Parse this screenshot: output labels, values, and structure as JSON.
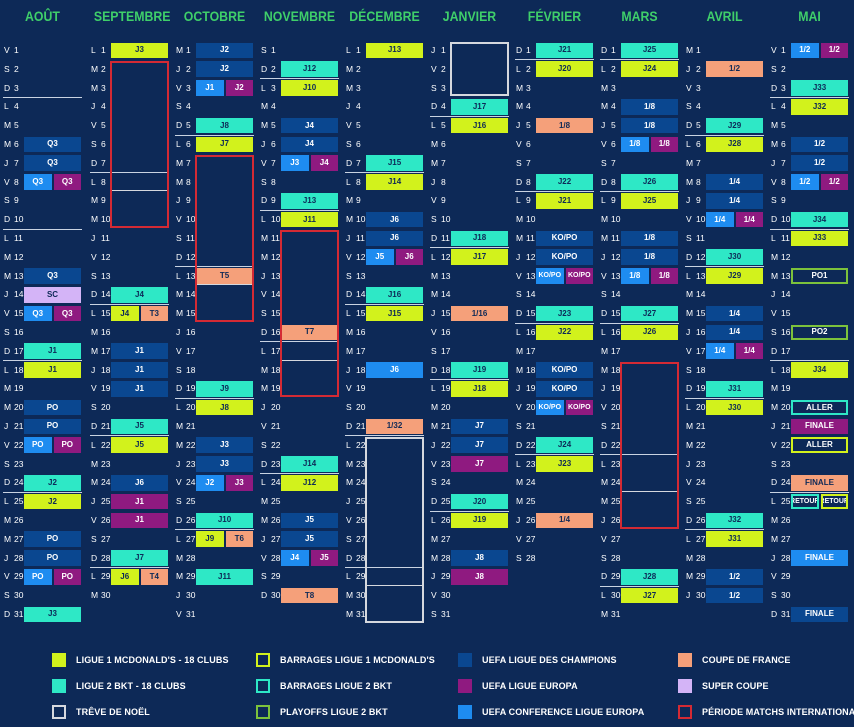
{
  "months": [
    {
      "name": "AOÛT",
      "days": 31,
      "start": 4
    },
    {
      "name": "SEPTEMBRE",
      "days": 30,
      "start": 0
    },
    {
      "name": "OCTOBRE",
      "days": 31,
      "start": 2
    },
    {
      "name": "NOVEMBRE",
      "days": 30,
      "start": 5
    },
    {
      "name": "DÉCEMBRE",
      "days": 31,
      "start": 0
    },
    {
      "name": "JANVIER",
      "days": 31,
      "start": 3
    },
    {
      "name": "FÉVRIER",
      "days": 28,
      "start": 6
    },
    {
      "name": "MARS",
      "days": 31,
      "start": 6
    },
    {
      "name": "AVRIL",
      "days": 30,
      "start": 2
    },
    {
      "name": "MAI",
      "days": 31,
      "start": 4
    }
  ],
  "weekday_letters": [
    "L",
    "M",
    "M",
    "J",
    "V",
    "S",
    "D"
  ],
  "colors": {
    "l1": "#d2f21c",
    "l2": "#2ee8c6",
    "ucl": "#0a4790",
    "uel": "#8f1a80",
    "uecl": "#1e8cf0",
    "cdf": "#f5a07a",
    "sc": "#d4b4f7",
    "b_l1": "#d2f21c",
    "b_l2": "#2ee8c6",
    "po_l2": "#7cc23c",
    "noel": "#d5d8de",
    "intl": "#d42a34"
  },
  "events": [
    {
      "m": 0,
      "d": 6,
      "t": "ucl",
      "l": "Q3"
    },
    {
      "m": 0,
      "d": 7,
      "t": "ucl",
      "l": "Q3"
    },
    {
      "m": 0,
      "d": 8,
      "t": "uecl",
      "l": "Q3",
      "half": 1
    },
    {
      "m": 0,
      "d": 8,
      "t": "uel",
      "l": "Q3",
      "half": 2
    },
    {
      "m": 0,
      "d": 13,
      "t": "ucl",
      "l": "Q3"
    },
    {
      "m": 0,
      "d": 14,
      "t": "sc",
      "l": "SC"
    },
    {
      "m": 0,
      "d": 15,
      "t": "uecl",
      "l": "Q3",
      "half": 1
    },
    {
      "m": 0,
      "d": 15,
      "t": "uel",
      "l": "Q3",
      "half": 2
    },
    {
      "m": 0,
      "d": 17,
      "t": "l2",
      "l": "J1"
    },
    {
      "m": 0,
      "d": 18,
      "t": "l1",
      "l": "J1"
    },
    {
      "m": 0,
      "d": 20,
      "t": "ucl",
      "l": "PO"
    },
    {
      "m": 0,
      "d": 21,
      "t": "ucl",
      "l": "PO"
    },
    {
      "m": 0,
      "d": 22,
      "t": "uecl",
      "l": "PO",
      "half": 1
    },
    {
      "m": 0,
      "d": 22,
      "t": "uel",
      "l": "PO",
      "half": 2
    },
    {
      "m": 0,
      "d": 24,
      "t": "l2",
      "l": "J2"
    },
    {
      "m": 0,
      "d": 25,
      "t": "l1",
      "l": "J2"
    },
    {
      "m": 0,
      "d": 27,
      "t": "ucl",
      "l": "PO"
    },
    {
      "m": 0,
      "d": 28,
      "t": "ucl",
      "l": "PO"
    },
    {
      "m": 0,
      "d": 29,
      "t": "uecl",
      "l": "PO",
      "half": 1
    },
    {
      "m": 0,
      "d": 29,
      "t": "uel",
      "l": "PO",
      "half": 2
    },
    {
      "m": 0,
      "d": 31,
      "t": "l2",
      "l": "J3"
    },
    {
      "m": 1,
      "d": 1,
      "t": "l1",
      "l": "J3"
    },
    {
      "m": 1,
      "d": 14,
      "t": "l2",
      "l": "J4"
    },
    {
      "m": 1,
      "d": 15,
      "t": "l1",
      "l": "J4",
      "half": 1
    },
    {
      "m": 1,
      "d": 15,
      "t": "cdf",
      "l": "T3",
      "half": 2
    },
    {
      "m": 1,
      "d": 17,
      "t": "ucl",
      "l": "J1"
    },
    {
      "m": 1,
      "d": 18,
      "t": "ucl",
      "l": "J1"
    },
    {
      "m": 1,
      "d": 19,
      "t": "ucl",
      "l": "J1"
    },
    {
      "m": 1,
      "d": 21,
      "t": "l2",
      "l": "J5"
    },
    {
      "m": 1,
      "d": 22,
      "t": "l1",
      "l": "J5"
    },
    {
      "m": 1,
      "d": 24,
      "t": "ucl",
      "l": "J6"
    },
    {
      "m": 1,
      "d": 25,
      "t": "uel",
      "l": "J1"
    },
    {
      "m": 1,
      "d": 26,
      "t": "uel",
      "l": "J1"
    },
    {
      "m": 1,
      "d": 28,
      "t": "l2",
      "l": "J7"
    },
    {
      "m": 1,
      "d": 29,
      "t": "l1",
      "l": "J6",
      "half": 1
    },
    {
      "m": 1,
      "d": 29,
      "t": "cdf",
      "l": "T4",
      "half": 2
    },
    {
      "m": 2,
      "d": 1,
      "t": "ucl",
      "l": "J2"
    },
    {
      "m": 2,
      "d": 2,
      "t": "ucl",
      "l": "J2"
    },
    {
      "m": 2,
      "d": 3,
      "t": "uecl",
      "l": "J1",
      "half": 1
    },
    {
      "m": 2,
      "d": 3,
      "t": "uel",
      "l": "J2",
      "half": 2
    },
    {
      "m": 2,
      "d": 5,
      "t": "l2",
      "l": "J8"
    },
    {
      "m": 2,
      "d": 6,
      "t": "l1",
      "l": "J7"
    },
    {
      "m": 2,
      "d": 13,
      "t": "cdf",
      "l": "T5"
    },
    {
      "m": 2,
      "d": 19,
      "t": "l2",
      "l": "J9"
    },
    {
      "m": 2,
      "d": 20,
      "t": "l1",
      "l": "J8"
    },
    {
      "m": 2,
      "d": 22,
      "t": "ucl",
      "l": "J3"
    },
    {
      "m": 2,
      "d": 23,
      "t": "ucl",
      "l": "J3"
    },
    {
      "m": 2,
      "d": 24,
      "t": "uecl",
      "l": "J2",
      "half": 1
    },
    {
      "m": 2,
      "d": 24,
      "t": "uel",
      "l": "J3",
      "half": 2
    },
    {
      "m": 2,
      "d": 26,
      "t": "l2",
      "l": "J10"
    },
    {
      "m": 2,
      "d": 27,
      "t": "l1",
      "l": "J9",
      "half": 1
    },
    {
      "m": 2,
      "d": 27,
      "t": "cdf",
      "l": "T6",
      "half": 2
    },
    {
      "m": 2,
      "d": 29,
      "t": "l2",
      "l": "J11"
    },
    {
      "m": 3,
      "d": 2,
      "t": "l2",
      "l": "J12"
    },
    {
      "m": 3,
      "d": 3,
      "t": "l1",
      "l": "J10"
    },
    {
      "m": 3,
      "d": 5,
      "t": "ucl",
      "l": "J4"
    },
    {
      "m": 3,
      "d": 6,
      "t": "ucl",
      "l": "J4"
    },
    {
      "m": 3,
      "d": 7,
      "t": "uecl",
      "l": "J3",
      "half": 1
    },
    {
      "m": 3,
      "d": 7,
      "t": "uel",
      "l": "J4",
      "half": 2
    },
    {
      "m": 3,
      "d": 9,
      "t": "l2",
      "l": "J13"
    },
    {
      "m": 3,
      "d": 10,
      "t": "l1",
      "l": "J11"
    },
    {
      "m": 3,
      "d": 16,
      "t": "cdf",
      "l": "T7"
    },
    {
      "m": 3,
      "d": 23,
      "t": "l2",
      "l": "J14"
    },
    {
      "m": 3,
      "d": 24,
      "t": "l1",
      "l": "J12"
    },
    {
      "m": 3,
      "d": 26,
      "t": "ucl",
      "l": "J5"
    },
    {
      "m": 3,
      "d": 27,
      "t": "ucl",
      "l": "J5"
    },
    {
      "m": 3,
      "d": 28,
      "t": "uecl",
      "l": "J4",
      "half": 1
    },
    {
      "m": 3,
      "d": 28,
      "t": "uel",
      "l": "J5",
      "half": 2
    },
    {
      "m": 3,
      "d": 30,
      "t": "cdf",
      "l": "T8"
    },
    {
      "m": 4,
      "d": 1,
      "t": "l1",
      "l": "J13"
    },
    {
      "m": 4,
      "d": 7,
      "t": "l2",
      "l": "J15"
    },
    {
      "m": 4,
      "d": 8,
      "t": "l1",
      "l": "J14"
    },
    {
      "m": 4,
      "d": 10,
      "t": "ucl",
      "l": "J6"
    },
    {
      "m": 4,
      "d": 11,
      "t": "ucl",
      "l": "J6"
    },
    {
      "m": 4,
      "d": 12,
      "t": "uecl",
      "l": "J5",
      "half": 1
    },
    {
      "m": 4,
      "d": 12,
      "t": "uel",
      "l": "J6",
      "half": 2
    },
    {
      "m": 4,
      "d": 14,
      "t": "l2",
      "l": "J16"
    },
    {
      "m": 4,
      "d": 15,
      "t": "l1",
      "l": "J15"
    },
    {
      "m": 4,
      "d": 18,
      "t": "uecl",
      "l": "J6"
    },
    {
      "m": 4,
      "d": 21,
      "t": "cdf",
      "l": "1/32"
    },
    {
      "m": 5,
      "d": 4,
      "t": "l2",
      "l": "J17"
    },
    {
      "m": 5,
      "d": 5,
      "t": "l1",
      "l": "J16"
    },
    {
      "m": 5,
      "d": 11,
      "t": "l2",
      "l": "J18"
    },
    {
      "m": 5,
      "d": 12,
      "t": "l1",
      "l": "J17"
    },
    {
      "m": 5,
      "d": 15,
      "t": "cdf",
      "l": "1/16"
    },
    {
      "m": 5,
      "d": 18,
      "t": "l2",
      "l": "J19"
    },
    {
      "m": 5,
      "d": 19,
      "t": "l1",
      "l": "J18"
    },
    {
      "m": 5,
      "d": 21,
      "t": "ucl",
      "l": "J7"
    },
    {
      "m": 5,
      "d": 22,
      "t": "ucl",
      "l": "J7"
    },
    {
      "m": 5,
      "d": 23,
      "t": "uel",
      "l": "J7"
    },
    {
      "m": 5,
      "d": 25,
      "t": "l2",
      "l": "J20"
    },
    {
      "m": 5,
      "d": 26,
      "t": "l1",
      "l": "J19"
    },
    {
      "m": 5,
      "d": 28,
      "t": "ucl",
      "l": "J8"
    },
    {
      "m": 5,
      "d": 29,
      "t": "uel",
      "l": "J8"
    },
    {
      "m": 6,
      "d": 1,
      "t": "l2",
      "l": "J21"
    },
    {
      "m": 6,
      "d": 2,
      "t": "l1",
      "l": "J20"
    },
    {
      "m": 6,
      "d": 5,
      "t": "cdf",
      "l": "1/8"
    },
    {
      "m": 6,
      "d": 8,
      "t": "l2",
      "l": "J22"
    },
    {
      "m": 6,
      "d": 9,
      "t": "l1",
      "l": "J21"
    },
    {
      "m": 6,
      "d": 11,
      "t": "ucl",
      "l": "KO/PO"
    },
    {
      "m": 6,
      "d": 12,
      "t": "ucl",
      "l": "KO/PO"
    },
    {
      "m": 6,
      "d": 13,
      "t": "uecl",
      "l": "KO/PO",
      "half": 1
    },
    {
      "m": 6,
      "d": 13,
      "t": "uel",
      "l": "KO/PO",
      "half": 2
    },
    {
      "m": 6,
      "d": 15,
      "t": "l2",
      "l": "J23"
    },
    {
      "m": 6,
      "d": 16,
      "t": "l1",
      "l": "J22"
    },
    {
      "m": 6,
      "d": 18,
      "t": "ucl",
      "l": "KO/PO"
    },
    {
      "m": 6,
      "d": 19,
      "t": "ucl",
      "l": "KO/PO"
    },
    {
      "m": 6,
      "d": 20,
      "t": "uecl",
      "l": "KO/PO",
      "half": 1
    },
    {
      "m": 6,
      "d": 20,
      "t": "uel",
      "l": "KO/PO",
      "half": 2
    },
    {
      "m": 6,
      "d": 22,
      "t": "l2",
      "l": "J24"
    },
    {
      "m": 6,
      "d": 23,
      "t": "l1",
      "l": "J23"
    },
    {
      "m": 6,
      "d": 26,
      "t": "cdf",
      "l": "1/4"
    },
    {
      "m": 7,
      "d": 1,
      "t": "l2",
      "l": "J25"
    },
    {
      "m": 7,
      "d": 2,
      "t": "l1",
      "l": "J24"
    },
    {
      "m": 7,
      "d": 4,
      "t": "ucl",
      "l": "1/8"
    },
    {
      "m": 7,
      "d": 5,
      "t": "ucl",
      "l": "1/8"
    },
    {
      "m": 7,
      "d": 6,
      "t": "uecl",
      "l": "1/8",
      "half": 1
    },
    {
      "m": 7,
      "d": 6,
      "t": "uel",
      "l": "1/8",
      "half": 2
    },
    {
      "m": 7,
      "d": 8,
      "t": "l2",
      "l": "J26"
    },
    {
      "m": 7,
      "d": 9,
      "t": "l1",
      "l": "J25"
    },
    {
      "m": 7,
      "d": 11,
      "t": "ucl",
      "l": "1/8"
    },
    {
      "m": 7,
      "d": 12,
      "t": "ucl",
      "l": "1/8"
    },
    {
      "m": 7,
      "d": 13,
      "t": "uecl",
      "l": "1/8",
      "half": 1
    },
    {
      "m": 7,
      "d": 13,
      "t": "uel",
      "l": "1/8",
      "half": 2
    },
    {
      "m": 7,
      "d": 15,
      "t": "l2",
      "l": "J27"
    },
    {
      "m": 7,
      "d": 16,
      "t": "l1",
      "l": "J26"
    },
    {
      "m": 7,
      "d": 29,
      "t": "l2",
      "l": "J28"
    },
    {
      "m": 7,
      "d": 30,
      "t": "l1",
      "l": "J27"
    },
    {
      "m": 8,
      "d": 2,
      "t": "cdf",
      "l": "1/2"
    },
    {
      "m": 8,
      "d": 5,
      "t": "l2",
      "l": "J29"
    },
    {
      "m": 8,
      "d": 6,
      "t": "l1",
      "l": "J28"
    },
    {
      "m": 8,
      "d": 8,
      "t": "ucl",
      "l": "1/4"
    },
    {
      "m": 8,
      "d": 9,
      "t": "ucl",
      "l": "1/4"
    },
    {
      "m": 8,
      "d": 10,
      "t": "uecl",
      "l": "1/4",
      "half": 1
    },
    {
      "m": 8,
      "d": 10,
      "t": "uel",
      "l": "1/4",
      "half": 2
    },
    {
      "m": 8,
      "d": 12,
      "t": "l2",
      "l": "J30"
    },
    {
      "m": 8,
      "d": 13,
      "t": "l1",
      "l": "J29"
    },
    {
      "m": 8,
      "d": 15,
      "t": "ucl",
      "l": "1/4"
    },
    {
      "m": 8,
      "d": 16,
      "t": "ucl",
      "l": "1/4"
    },
    {
      "m": 8,
      "d": 17,
      "t": "uecl",
      "l": "1/4",
      "half": 1
    },
    {
      "m": 8,
      "d": 17,
      "t": "uel",
      "l": "1/4",
      "half": 2
    },
    {
      "m": 8,
      "d": 19,
      "t": "l2",
      "l": "J31"
    },
    {
      "m": 8,
      "d": 20,
      "t": "l1",
      "l": "J30"
    },
    {
      "m": 8,
      "d": 26,
      "t": "l2",
      "l": "J32"
    },
    {
      "m": 8,
      "d": 27,
      "t": "l1",
      "l": "J31"
    },
    {
      "m": 8,
      "d": 29,
      "t": "ucl",
      "l": "1/2"
    },
    {
      "m": 8,
      "d": 30,
      "t": "ucl",
      "l": "1/2"
    },
    {
      "m": 9,
      "d": 1,
      "t": "uecl",
      "l": "1/2",
      "half": 1
    },
    {
      "m": 9,
      "d": 1,
      "t": "uel",
      "l": "1/2",
      "half": 2
    },
    {
      "m": 9,
      "d": 3,
      "t": "l2",
      "l": "J33"
    },
    {
      "m": 9,
      "d": 4,
      "t": "l1",
      "l": "J32"
    },
    {
      "m": 9,
      "d": 6,
      "t": "ucl",
      "l": "1/2"
    },
    {
      "m": 9,
      "d": 7,
      "t": "ucl",
      "l": "1/2"
    },
    {
      "m": 9,
      "d": 8,
      "t": "uecl",
      "l": "1/2",
      "half": 1
    },
    {
      "m": 9,
      "d": 8,
      "t": "uel",
      "l": "1/2",
      "half": 2
    },
    {
      "m": 9,
      "d": 10,
      "t": "l2",
      "l": "J34"
    },
    {
      "m": 9,
      "d": 11,
      "t": "l1",
      "l": "J33"
    },
    {
      "m": 9,
      "d": 13,
      "t": "po_l2",
      "l": "PO1",
      "outline": true
    },
    {
      "m": 9,
      "d": 16,
      "t": "po_l2",
      "l": "PO2",
      "outline": true
    },
    {
      "m": 9,
      "d": 18,
      "t": "l1",
      "l": "J34"
    },
    {
      "m": 9,
      "d": 20,
      "t": "b_l2",
      "l": "ALLER",
      "outline": true
    },
    {
      "m": 9,
      "d": 21,
      "t": "uel",
      "l": "FINALE"
    },
    {
      "m": 9,
      "d": 22,
      "t": "b_l1",
      "l": "ALLER",
      "outline": true
    },
    {
      "m": 9,
      "d": 24,
      "t": "cdf",
      "l": "FINALE"
    },
    {
      "m": 9,
      "d": 25,
      "t": "b_l2",
      "l": "RETOUR",
      "outline": true,
      "half": 1
    },
    {
      "m": 9,
      "d": 25,
      "t": "b_l1",
      "l": "RETOUR",
      "outline": true,
      "half": 2
    },
    {
      "m": 9,
      "d": 28,
      "t": "uecl",
      "l": "FINALE"
    },
    {
      "m": 9,
      "d": 31,
      "t": "ucl",
      "l": "FINALE"
    }
  ],
  "intl_periods": [
    {
      "m": 1,
      "from": 2,
      "to": 10,
      "divider_after": 8
    },
    {
      "m": 2,
      "from": 7,
      "to": 15,
      "divider_after": 13
    },
    {
      "m": 3,
      "from": 11,
      "to": 19,
      "divider_after": 17
    },
    {
      "m": 7,
      "from": 18,
      "to": 26,
      "divider_after": 24
    }
  ],
  "noel_periods": [
    {
      "m": 4,
      "from": 22,
      "to": 31,
      "divider_after": 29
    },
    {
      "m": 5,
      "from": 1,
      "to": 3
    }
  ],
  "legend": [
    {
      "label": "LIGUE 1 MCDONALD'S - 18 CLUBS",
      "t": "l1",
      "outline": false
    },
    {
      "label": "BARRAGES LIGUE 1 MCDONALD'S",
      "t": "b_l1",
      "outline": true
    },
    {
      "label": "UEFA LIGUE DES CHAMPIONS",
      "t": "ucl",
      "outline": false
    },
    {
      "label": "COUPE DE FRANCE",
      "t": "cdf",
      "outline": false
    },
    {
      "label": "LIGUE 2 BKT - 18 CLUBS",
      "t": "l2",
      "outline": false
    },
    {
      "label": "BARRAGES LIGUE 2 BKT",
      "t": "b_l2",
      "outline": true
    },
    {
      "label": "UEFA LIGUE EUROPA",
      "t": "uel",
      "outline": false
    },
    {
      "label": "SUPER COUPE",
      "t": "sc",
      "outline": false
    },
    {
      "label": "TRÊVE DE NOËL",
      "t": "noel",
      "outline": true
    },
    {
      "label": "PLAYOFFS LIGUE 2 BKT",
      "t": "po_l2",
      "outline": true
    },
    {
      "label": "UEFA CONFERENCE LIGUE EUROPA",
      "t": "uecl",
      "outline": false
    },
    {
      "label": "PÉRIODE MATCHS INTERNATIONAUX",
      "t": "intl",
      "outline": true
    }
  ]
}
